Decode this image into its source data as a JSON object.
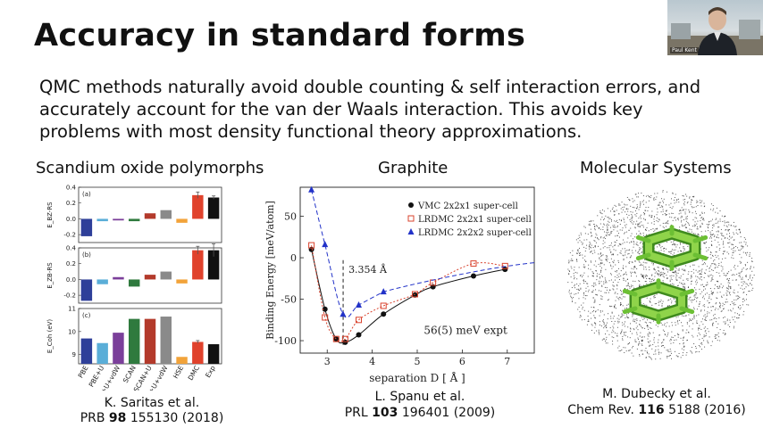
{
  "slide": {
    "title": "Accuracy in standard forms",
    "body_lines": [
      "QMC methods naturally avoid double counting & self interaction errors, and",
      "accurately account for the van der Waals interaction. This avoids key",
      "problems with most density functional theory approximations."
    ]
  },
  "video": {
    "name_label": "Paul Kent"
  },
  "panels": {
    "left": {
      "heading": "Scandium oxide polymorphs",
      "cite_line1": "K. Saritas et al.",
      "cite_line2_prefix": "PRB ",
      "cite_line2_bold": "98",
      "cite_line2_suffix": " 155130 (2018)"
    },
    "middle": {
      "heading": "Graphite",
      "cite_line1": "L. Spanu et al.",
      "cite_line2_prefix": "PRL ",
      "cite_line2_bold": "103",
      "cite_line2_suffix": " 196401 (2009)"
    },
    "right": {
      "heading": "Molecular Systems",
      "cite_line1": "M. Dubecky et al.",
      "cite_line2_prefix": "Chem Rev. ",
      "cite_line2_bold": "116",
      "cite_line2_suffix": " 5188 (2016)"
    }
  },
  "chart_data": [
    {
      "type": "bar",
      "subplots": [
        {
          "tag": "(a)",
          "ylabel": "E_BZ-RS",
          "ylim": [
            -0.3,
            0.4
          ],
          "yticks": [
            "0.4",
            "0.2",
            "0.0",
            "-0.2"
          ],
          "values": [
            -0.22,
            -0.03,
            -0.02,
            -0.03,
            0.07,
            0.11,
            -0.05,
            0.3,
            0.27
          ],
          "error_bars": [
            0,
            0,
            0,
            0,
            0,
            0,
            0,
            0.04,
            0.02
          ]
        },
        {
          "tag": "(b)",
          "ylabel": "E_ZB-RS",
          "ylim": [
            -0.3,
            0.4
          ],
          "yticks": [
            "0.4",
            "0.2",
            "0.0",
            "-0.2"
          ],
          "values": [
            -0.27,
            -0.06,
            0.03,
            -0.09,
            0.06,
            0.1,
            -0.05,
            0.37,
            0.37
          ],
          "error_bars": [
            0,
            0,
            0,
            0,
            0,
            0,
            0,
            0.05,
            0.08
          ]
        },
        {
          "tag": "(c)",
          "ylabel": "E_Coh (eV)",
          "ylim": [
            8.6,
            11.0
          ],
          "yticks": [
            "11",
            "10",
            "9"
          ],
          "values": [
            9.7,
            9.5,
            9.95,
            10.55,
            10.55,
            10.65,
            8.9,
            9.55,
            9.45
          ],
          "error_bars": [
            0,
            0,
            0,
            0,
            0,
            0,
            0,
            0.06,
            0
          ]
        }
      ],
      "categories": [
        "PBE",
        "PBE+U",
        "PBE+U+vdW",
        "SCAN",
        "SCAN+U",
        "SCAN+U+vdW",
        "HSE",
        "DMC",
        "Exp"
      ],
      "colors": [
        "#2e3f99",
        "#5aaed8",
        "#7b3f9a",
        "#2f7a3e",
        "#b33a2b",
        "#8a8a8a",
        "#f2a33a",
        "#e0422c",
        "#111111"
      ]
    },
    {
      "type": "line",
      "xlabel": "separation D  [ Å ]",
      "ylabel": "Binding Energy [meV/atom]",
      "xlim": [
        2.4,
        7.6
      ],
      "ylim": [
        -115,
        85
      ],
      "xticks": [
        "3",
        "4",
        "5",
        "6",
        "7"
      ],
      "yticks": [
        "50",
        "0",
        "-50",
        "-100"
      ],
      "series": [
        {
          "name": "VMC    2x2x1 super-cell",
          "marker": "circle",
          "color": "#111111",
          "x": [
            2.65,
            2.95,
            3.2,
            3.4,
            3.7,
            4.25,
            4.95,
            5.35,
            6.25,
            6.95
          ],
          "y": [
            10,
            -62,
            -98,
            -102,
            -93,
            -68,
            -45,
            -35,
            -22,
            -14
          ]
        },
        {
          "name": "LRDMC 2x2x1 super-cell",
          "marker": "open-square",
          "color": "#d9432e",
          "x": [
            2.65,
            2.95,
            3.2,
            3.4,
            3.7,
            4.25,
            4.95,
            5.35,
            6.25,
            6.95
          ],
          "y": [
            15,
            -72,
            -98,
            -98,
            -75,
            -58,
            -44,
            -30,
            -7,
            -10
          ]
        },
        {
          "name": "LRDMC 2x2x2 super-cell",
          "marker": "triangle",
          "color": "#2232c8",
          "x": [
            2.65,
            2.95,
            3.35,
            3.7,
            4.25
          ],
          "y": [
            82,
            16,
            -68,
            -57,
            -41
          ]
        }
      ],
      "annotations": [
        "3.354 Å",
        "56(5) meV expt"
      ],
      "vline_x": 3.354
    }
  ]
}
